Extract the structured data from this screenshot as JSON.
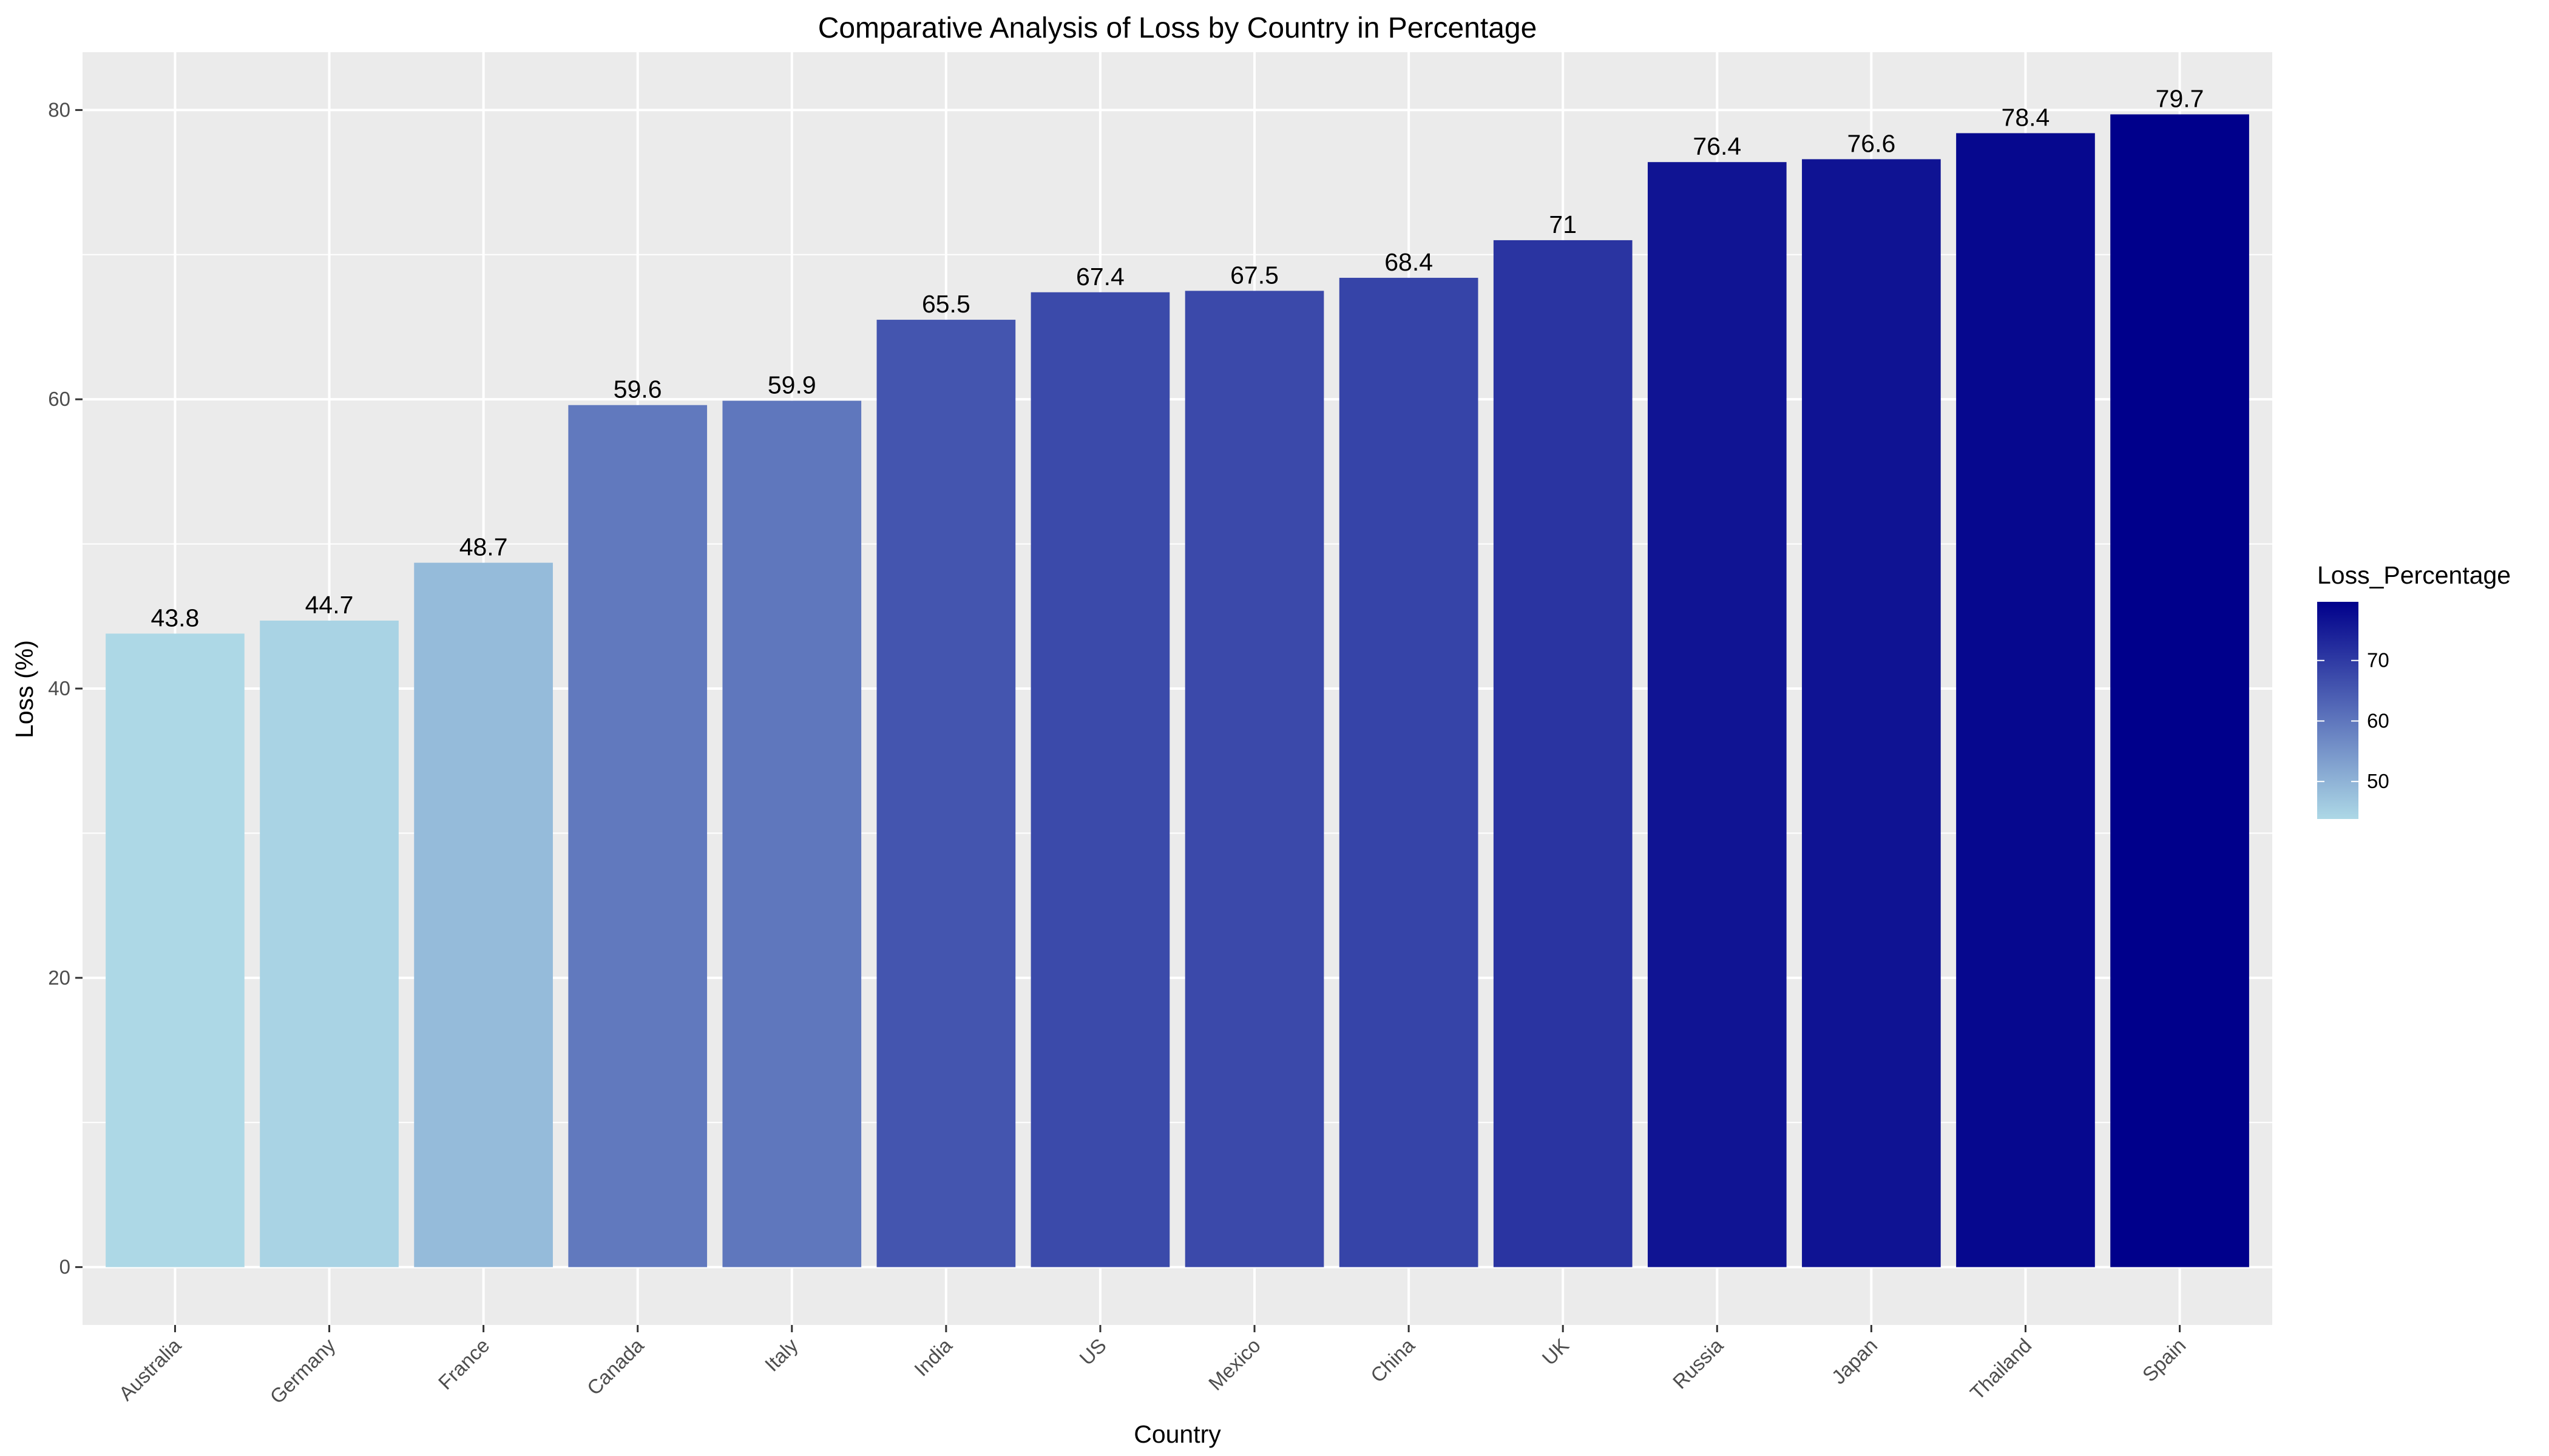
{
  "chart_data": {
    "type": "bar",
    "title": "Comparative Analysis of Loss by Country in Percentage",
    "xlabel": "Country",
    "ylabel": "Loss (%)",
    "categories": [
      "Australia",
      "Germany",
      "France",
      "Canada",
      "Italy",
      "India",
      "US",
      "Mexico",
      "China",
      "UK",
      "Russia",
      "Japan",
      "Thailand",
      "Spain"
    ],
    "values": [
      43.8,
      44.7,
      48.7,
      59.6,
      59.9,
      65.5,
      67.4,
      67.5,
      68.4,
      71,
      76.4,
      76.6,
      78.4,
      79.7
    ],
    "data_labels": [
      "43.8",
      "44.7",
      "48.7",
      "59.6",
      "59.9",
      "65.5",
      "67.4",
      "67.5",
      "68.4",
      "71",
      "76.4",
      "76.6",
      "78.4",
      "79.7"
    ],
    "ylim": [
      -4,
      84
    ],
    "yticks": [
      0,
      20,
      40,
      60,
      80
    ],
    "grid": true,
    "legend": {
      "title": "Loss_Percentage",
      "position": "right",
      "ticks": [
        50,
        60,
        70
      ],
      "range": [
        43.8,
        79.7
      ],
      "low_color": "#add8e6",
      "high_color": "#00008b"
    },
    "colors": {
      "panel_background": "#ebebeb",
      "grid": "#ffffff",
      "tick_text": "#4d4d4d"
    }
  }
}
